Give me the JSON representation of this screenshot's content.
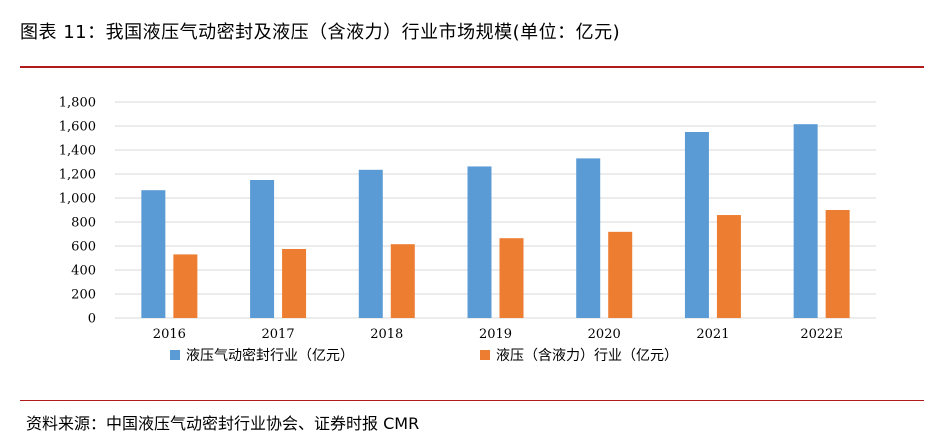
{
  "figure": {
    "title": "图表 11：我国液压气动密封及液压（含液力）行业市场规模(单位：亿元)",
    "source": "资料来源：中国液压气动密封行业协会、证券时报 CMR"
  },
  "colors": {
    "series1": "#5b9bd5",
    "series2": "#ed7d31",
    "grid": "#d9d9d9",
    "rule": "#b01c1c"
  },
  "chart_data": {
    "type": "bar",
    "categories": [
      "2016",
      "2017",
      "2018",
      "2019",
      "2020",
      "2021",
      "2022E"
    ],
    "series": [
      {
        "name": "液压气动密封行业（亿元）",
        "values": [
          1065,
          1150,
          1235,
          1263,
          1330,
          1550,
          1615
        ]
      },
      {
        "name": "液压（含液力）行业（亿元）",
        "values": [
          530,
          575,
          615,
          665,
          718,
          858,
          900
        ]
      }
    ],
    "yticks": [
      "0",
      "200",
      "400",
      "600",
      "800",
      "1,000",
      "1,200",
      "1,400",
      "1,600",
      "1,800"
    ],
    "ylim": [
      0,
      1800
    ],
    "grid": true,
    "legend_position": "bottom"
  }
}
